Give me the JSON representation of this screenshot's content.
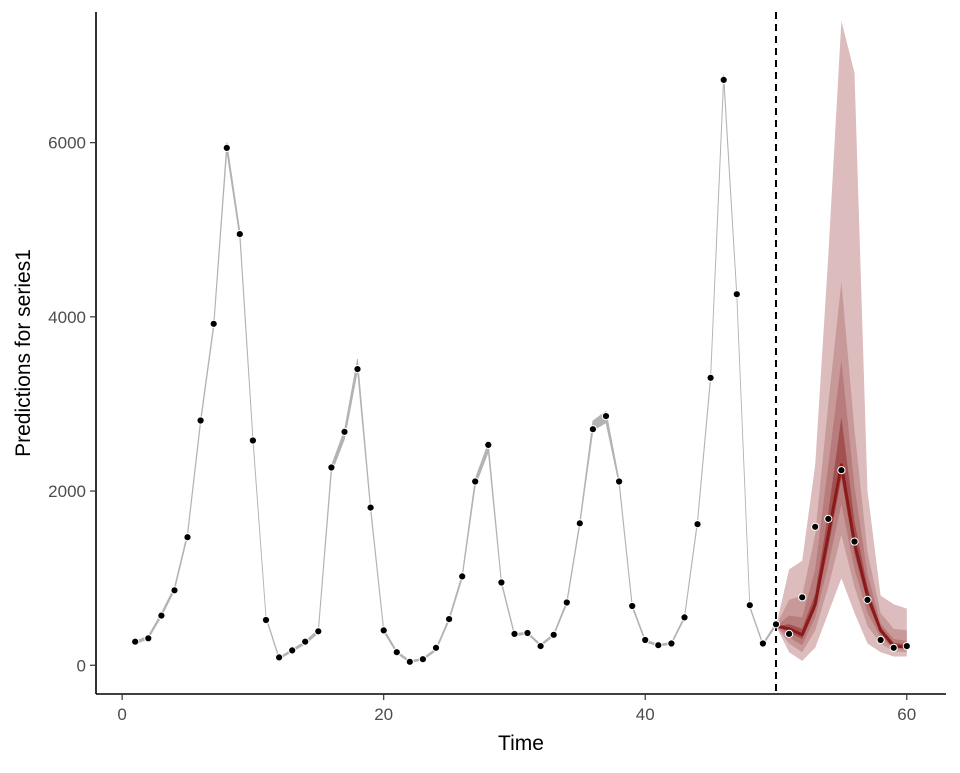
{
  "chart_data": {
    "type": "line",
    "xlabel": "Time",
    "ylabel": "Predictions for series1",
    "xlim": [
      -2,
      63
    ],
    "ylim": [
      -330,
      7500
    ],
    "x_ticks": [
      {
        "value": 0,
        "label": "0"
      },
      {
        "value": 20,
        "label": "20"
      },
      {
        "value": 40,
        "label": "40"
      },
      {
        "value": 60,
        "label": "60"
      }
    ],
    "y_ticks": [
      {
        "value": 0,
        "label": "0"
      },
      {
        "value": 2000,
        "label": "2000"
      },
      {
        "value": 4000,
        "label": "4000"
      },
      {
        "value": 6000,
        "label": "6000"
      }
    ],
    "forecast_start": 50,
    "grid": false,
    "colors": {
      "fit_line": "#b3b3b3",
      "observed_points": "#000000",
      "forecast_median": "#8b1a1a",
      "forecast_bands": [
        "#dcbcbc",
        "#c79999",
        "#b97c7c",
        "#a25050"
      ],
      "vline": "#000000"
    },
    "fitted": {
      "x": [
        1,
        2,
        3,
        4,
        5,
        6,
        7,
        8,
        9,
        10,
        11,
        12,
        13,
        14,
        15,
        16,
        17,
        18,
        19,
        20,
        21,
        22,
        23,
        24,
        25,
        26,
        27,
        28,
        29,
        30,
        31,
        32,
        33,
        34,
        35,
        36,
        37,
        38,
        39,
        40,
        41,
        42,
        43,
        44,
        45,
        46,
        47,
        48,
        49,
        50
      ],
      "y": [
        260,
        320,
        580,
        880,
        1500,
        2800,
        3900,
        5950,
        4950,
        2600,
        550,
        80,
        170,
        260,
        390,
        2250,
        2650,
        3450,
        1800,
        400,
        150,
        40,
        70,
        180,
        530,
        1020,
        2100,
        2500,
        950,
        350,
        370,
        230,
        350,
        720,
        1630,
        2750,
        2850,
        2100,
        680,
        280,
        230,
        250,
        550,
        1650,
        3300,
        6750,
        4250,
        670,
        240,
        470
      ],
      "width": [
        20,
        20,
        25,
        30,
        30,
        35,
        40,
        90,
        70,
        20,
        8,
        10,
        15,
        20,
        30,
        70,
        90,
        120,
        40,
        20,
        15,
        10,
        10,
        15,
        25,
        35,
        70,
        90,
        20,
        15,
        10,
        10,
        15,
        25,
        35,
        100,
        120,
        35,
        20,
        15,
        10,
        10,
        15,
        25,
        30,
        50,
        20,
        10,
        10,
        20
      ]
    },
    "forecast": {
      "x": [
        50,
        51,
        52,
        53,
        54,
        55,
        56,
        57,
        58,
        59,
        60
      ],
      "median": [
        450,
        420,
        350,
        700,
        1500,
        2300,
        1400,
        800,
        400,
        220,
        210
      ],
      "bands": [
        {
          "lower": [
            450,
            150,
            50,
            200,
            600,
            1000,
            600,
            250,
            150,
            100,
            100
          ],
          "upper": [
            450,
            1100,
            1200,
            2300,
            4700,
            7400,
            6800,
            2000,
            800,
            700,
            650
          ]
        },
        {
          "lower": [
            450,
            250,
            150,
            400,
            900,
            1500,
            900,
            450,
            250,
            160,
            150
          ],
          "upper": [
            450,
            750,
            800,
            1500,
            3000,
            4400,
            2700,
            1300,
            600,
            420,
            400
          ]
        },
        {
          "lower": [
            450,
            320,
            230,
            550,
            1150,
            1850,
            1100,
            600,
            320,
            190,
            180
          ],
          "upper": [
            450,
            570,
            550,
            1100,
            2300,
            3500,
            2050,
            1050,
            480,
            300,
            280
          ]
        },
        {
          "lower": [
            450,
            380,
            300,
            640,
            1350,
            2150,
            1280,
            720,
            370,
            210,
            200
          ],
          "upper": [
            450,
            470,
            420,
            820,
            1750,
            2850,
            1650,
            900,
            440,
            260,
            240
          ]
        }
      ]
    },
    "observed": {
      "x": [
        1,
        2,
        3,
        4,
        5,
        6,
        7,
        8,
        9,
        10,
        11,
        12,
        13,
        14,
        15,
        16,
        17,
        18,
        19,
        20,
        21,
        22,
        23,
        24,
        25,
        26,
        27,
        28,
        29,
        30,
        31,
        32,
        33,
        34,
        35,
        36,
        37,
        38,
        39,
        40,
        41,
        42,
        43,
        44,
        45,
        46,
        47,
        48,
        49,
        50,
        51,
        52,
        53,
        54,
        55,
        56,
        57,
        58,
        59,
        60
      ],
      "y": [
        270,
        310,
        570,
        860,
        1470,
        2810,
        3920,
        5940,
        4950,
        2580,
        520,
        90,
        170,
        270,
        390,
        2270,
        2680,
        3400,
        1810,
        400,
        150,
        40,
        70,
        200,
        530,
        1020,
        2110,
        2530,
        950,
        360,
        370,
        220,
        350,
        720,
        1630,
        2710,
        2860,
        2110,
        680,
        290,
        230,
        250,
        550,
        1620,
        3300,
        6720,
        4260,
        690,
        250,
        470,
        360,
        780,
        1590,
        1680,
        2240,
        1420,
        750,
        290,
        200,
        220
      ]
    }
  }
}
